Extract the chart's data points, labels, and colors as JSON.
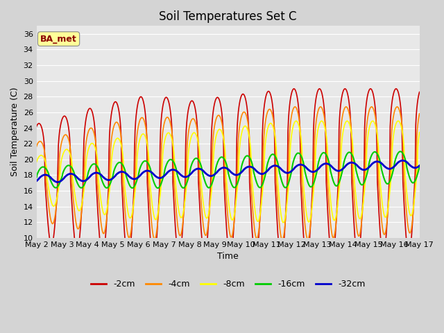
{
  "title": "Soil Temperatures Set C",
  "xlabel": "Time",
  "ylabel": "Soil Temperature (C)",
  "ylim": [
    10,
    37
  ],
  "yticks": [
    10,
    12,
    14,
    16,
    18,
    20,
    22,
    24,
    26,
    28,
    30,
    32,
    34,
    36
  ],
  "xtick_labels": [
    "May 2",
    "May 3",
    "May 4",
    "May 5",
    "May 6",
    "May 7",
    "May 8",
    "May 9",
    "May 10",
    "May 11",
    "May 12",
    "May 13",
    "May 14",
    "May 15",
    "May 16",
    "May 17"
  ],
  "legend_labels": [
    "-2cm",
    "-4cm",
    "-8cm",
    "-16cm",
    "-32cm"
  ],
  "line_colors": [
    "#cc0000",
    "#ff8800",
    "#ffff00",
    "#00cc00",
    "#0000cc"
  ],
  "line_widths": [
    1.2,
    1.2,
    1.2,
    1.5,
    2.0
  ],
  "annotation_text": "BA_met",
  "annotation_color": "#8b0000",
  "annotation_bg": "#ffff99",
  "bg_color": "#e0e0e0",
  "plot_bg": "#e8e8e8",
  "grid_color": "#ffffff",
  "figsize": [
    6.4,
    4.8
  ],
  "dpi": 100
}
